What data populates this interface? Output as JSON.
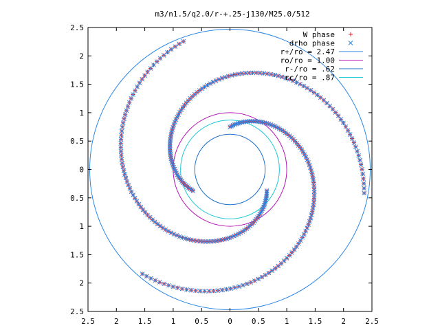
{
  "chart_data": {
    "type": "scatter",
    "title": "m3/n1.5/q2.0/r-+.25-j130/M25.0/512",
    "xlabel": "",
    "ylabel": "",
    "xlim": [
      -2.5,
      2.5
    ],
    "ylim": [
      -2.5,
      2.5
    ],
    "x_tick_labels": [
      "2.5",
      "2",
      "1.5",
      "1",
      "0.5",
      "0",
      "0.5",
      "1",
      "1.5",
      "2",
      "2.5"
    ],
    "x_tick_values": [
      -2.5,
      -2,
      -1.5,
      -1,
      -0.5,
      0,
      0.5,
      1,
      1.5,
      2,
      2.5
    ],
    "y_tick_labels": [
      "2.5",
      "2",
      "1.5",
      "1",
      "0.5",
      "0",
      "0.5",
      "1",
      "1.5",
      "2",
      "2.5"
    ],
    "y_tick_values": [
      2.5,
      2,
      1.5,
      1,
      0.5,
      0,
      -0.5,
      -1,
      -1.5,
      -2,
      -2.5
    ],
    "legend_position": "top-right",
    "grid": false,
    "legend": [
      {
        "label": "W phase",
        "marker": "plus",
        "color": "#e8232b"
      },
      {
        "label": "drho phase",
        "marker": "cross",
        "color": "#2a86e6"
      },
      {
        "label": "r+/ro = 2.47",
        "marker": "line",
        "color": "#2a86e6"
      },
      {
        "label": "ro/ro = 1.00",
        "marker": "line",
        "color": "#b414b4"
      },
      {
        "label": "r-/ro = .62",
        "marker": "line",
        "color": "#1c6fc8"
      },
      {
        "label": "rc/ro = .87",
        "marker": "line",
        "color": "#19c8d2"
      }
    ],
    "circles": [
      {
        "name": "r+/ro",
        "r": 2.47,
        "color": "#2a86e6"
      },
      {
        "name": "ro/ro",
        "r": 1.0,
        "color": "#b414b4"
      },
      {
        "name": "r-/ro",
        "r": 0.62,
        "color": "#1c6fc8"
      },
      {
        "name": "rc/ro",
        "r": 0.87,
        "color": "#19c8d2"
      }
    ],
    "series": [
      {
        "name": "W phase",
        "color": "#e8232b",
        "arms": [
          {
            "r_start": 0.75,
            "r_end": 2.4,
            "theta_start_deg": 90,
            "theta_end_deg": -130,
            "n": 110
          },
          {
            "r_start": 0.75,
            "r_end": 2.4,
            "theta_start_deg": 210,
            "theta_end_deg": -10,
            "n": 110
          },
          {
            "r_start": 0.75,
            "r_end": 2.4,
            "theta_start_deg": 330,
            "theta_end_deg": 110,
            "n": 110
          }
        ]
      },
      {
        "name": "drho phase",
        "color": "#2a86e6",
        "arms": [
          {
            "r_start": 0.75,
            "r_end": 2.4,
            "theta_start_deg": 90,
            "theta_end_deg": -130,
            "n": 110
          },
          {
            "r_start": 0.75,
            "r_end": 2.4,
            "theta_start_deg": 210,
            "theta_end_deg": -10,
            "n": 110
          },
          {
            "r_start": 0.75,
            "r_end": 2.4,
            "theta_start_deg": 330,
            "theta_end_deg": 110,
            "n": 110
          }
        ]
      }
    ]
  }
}
